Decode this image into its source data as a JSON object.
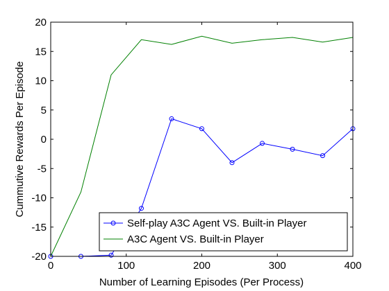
{
  "chart_data": {
    "type": "line",
    "xlabel": "Number of Learning Episodes (Per Process)",
    "ylabel": "Cummutive Rewards Per Episode",
    "xlim": [
      0,
      400
    ],
    "ylim": [
      -20,
      20
    ],
    "xticks": [
      0,
      100,
      200,
      300,
      400
    ],
    "yticks": [
      -20,
      -15,
      -10,
      -5,
      0,
      5,
      10,
      15,
      20
    ],
    "grid": false,
    "legend_position": "bottom-right",
    "series": [
      {
        "name": "Self-play A3C Agent VS. Built-in Player",
        "color": "#0000ff",
        "marker": "circle",
        "x": [
          0,
          40,
          80,
          120,
          160,
          200,
          240,
          280,
          320,
          360,
          400
        ],
        "y": [
          -20,
          -20,
          -19.8,
          -11.8,
          3.5,
          1.8,
          -4,
          -0.7,
          -1.7,
          -2.8,
          1.8
        ]
      },
      {
        "name": "A3C Agent VS. Built-in Player",
        "color": "#008000",
        "marker": "none",
        "x": [
          0,
          40,
          80,
          120,
          160,
          200,
          240,
          280,
          320,
          360,
          400
        ],
        "y": [
          -20,
          -9,
          11,
          17,
          16.2,
          17.6,
          16.4,
          17,
          17.4,
          16.6,
          17.4
        ]
      }
    ]
  }
}
